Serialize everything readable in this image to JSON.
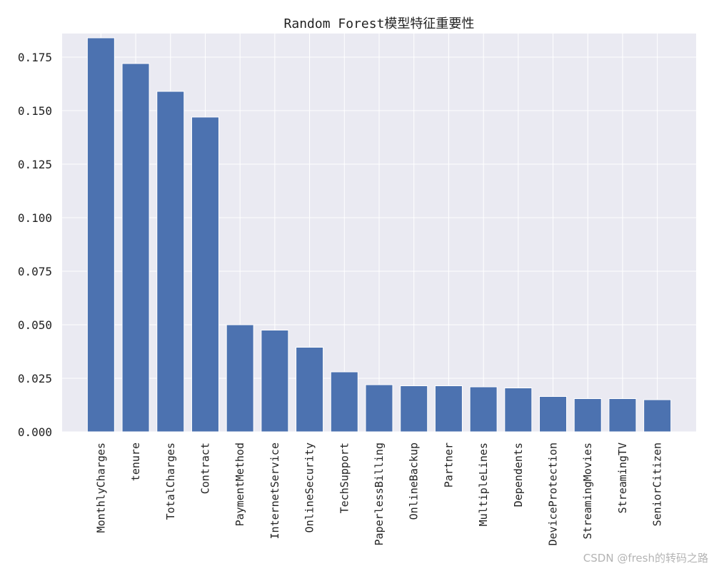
{
  "chart_data": {
    "type": "bar",
    "title": "Random Forest模型特征重要性",
    "xlabel": "",
    "ylabel": "",
    "ylim": [
      0,
      0.186
    ],
    "yticks": [
      "0.000",
      "0.025",
      "0.050",
      "0.075",
      "0.100",
      "0.125",
      "0.150",
      "0.175"
    ],
    "grid": true,
    "categories": [
      "MonthlyCharges",
      "tenure",
      "TotalCharges",
      "Contract",
      "PaymentMethod",
      "InternetService",
      "OnlineSecurity",
      "TechSupport",
      "PaperlessBilling",
      "OnlineBackup",
      "Partner",
      "MultipleLines",
      "Dependents",
      "DeviceProtection",
      "StreamingMovies",
      "StreamingTV",
      "SeniorCitizen"
    ],
    "values": [
      0.184,
      0.172,
      0.159,
      0.147,
      0.05,
      0.0475,
      0.0395,
      0.028,
      0.022,
      0.0215,
      0.0215,
      0.021,
      0.0205,
      0.0165,
      0.0155,
      0.0155,
      0.015
    ],
    "colors": {
      "bar": "#4c72b0",
      "plot_bg": "#eaeaf2",
      "grid": "#ffffff"
    }
  },
  "watermark": "CSDN @fresh的转码之路"
}
